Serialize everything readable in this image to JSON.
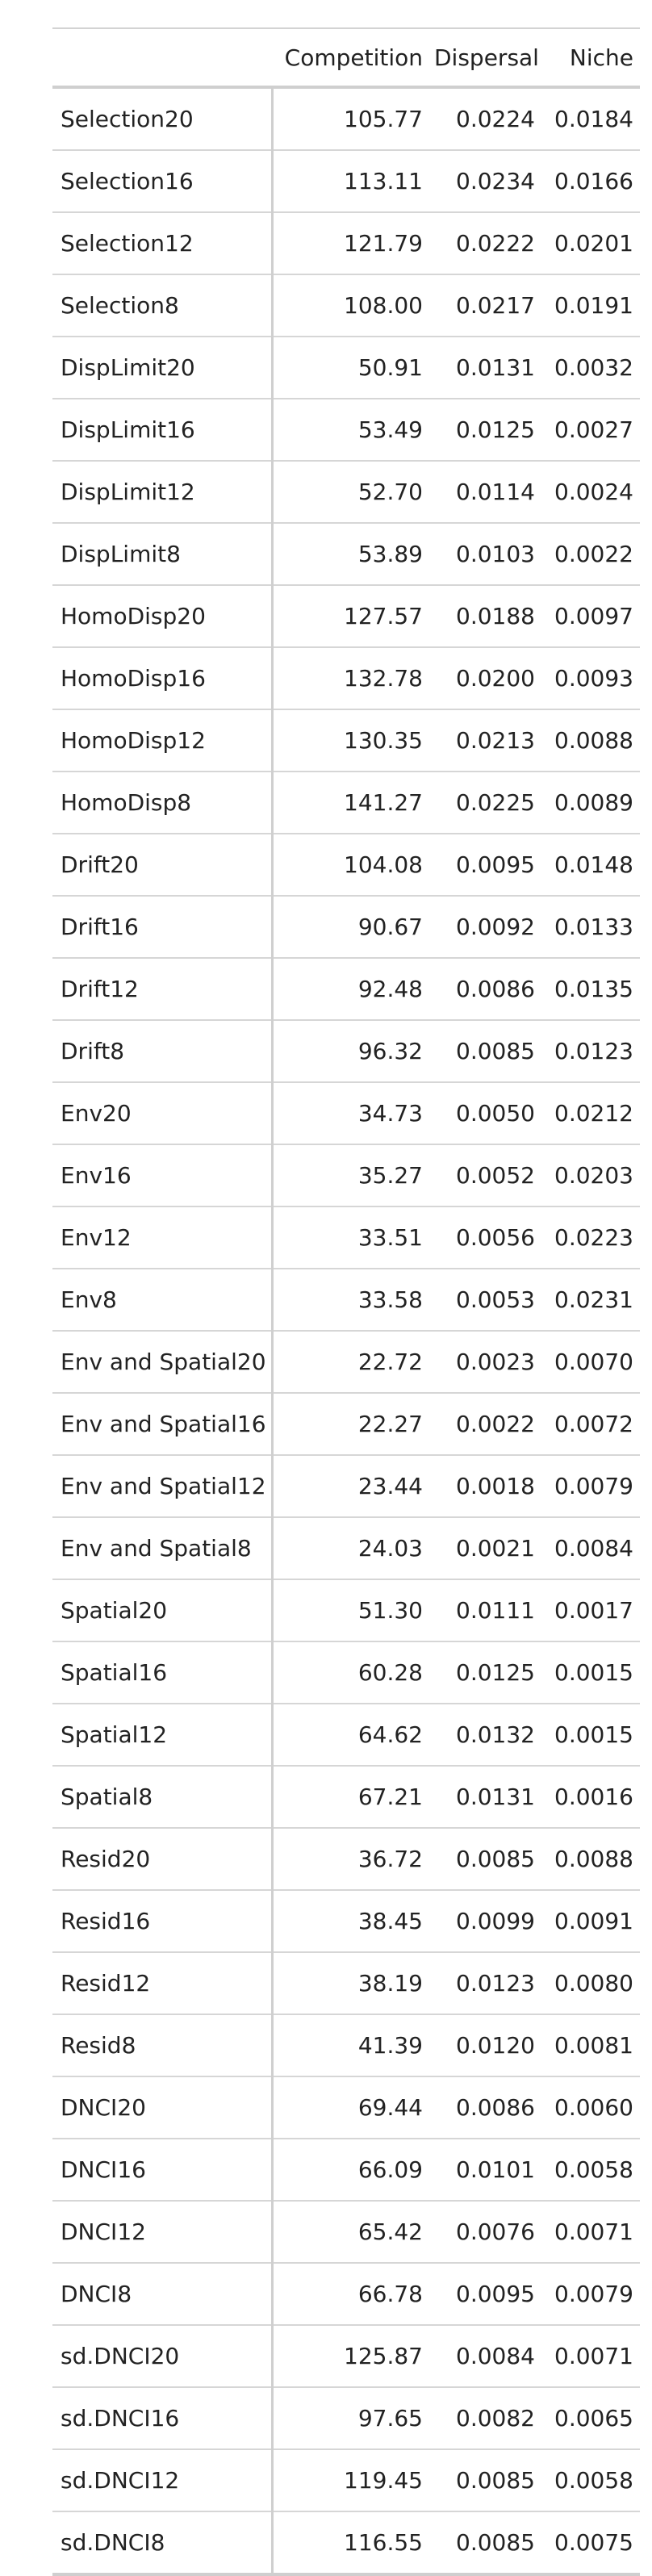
{
  "table": {
    "columns": {
      "stub": "",
      "competition": "Competition",
      "dispersal": "Dispersal",
      "niche": "Niche"
    },
    "rows": [
      {
        "name": "Selection20",
        "competition": "105.77",
        "dispersal": "0.0224",
        "niche": "0.0184"
      },
      {
        "name": "Selection16",
        "competition": "113.11",
        "dispersal": "0.0234",
        "niche": "0.0166"
      },
      {
        "name": "Selection12",
        "competition": "121.79",
        "dispersal": "0.0222",
        "niche": "0.0201"
      },
      {
        "name": "Selection8",
        "competition": "108.00",
        "dispersal": "0.0217",
        "niche": "0.0191"
      },
      {
        "name": "DispLimit20",
        "competition": "50.91",
        "dispersal": "0.0131",
        "niche": "0.0032"
      },
      {
        "name": "DispLimit16",
        "competition": "53.49",
        "dispersal": "0.0125",
        "niche": "0.0027"
      },
      {
        "name": "DispLimit12",
        "competition": "52.70",
        "dispersal": "0.0114",
        "niche": "0.0024"
      },
      {
        "name": "DispLimit8",
        "competition": "53.89",
        "dispersal": "0.0103",
        "niche": "0.0022"
      },
      {
        "name": "HomoDisp20",
        "competition": "127.57",
        "dispersal": "0.0188",
        "niche": "0.0097"
      },
      {
        "name": "HomoDisp16",
        "competition": "132.78",
        "dispersal": "0.0200",
        "niche": "0.0093"
      },
      {
        "name": "HomoDisp12",
        "competition": "130.35",
        "dispersal": "0.0213",
        "niche": "0.0088"
      },
      {
        "name": "HomoDisp8",
        "competition": "141.27",
        "dispersal": "0.0225",
        "niche": "0.0089"
      },
      {
        "name": "Drift20",
        "competition": "104.08",
        "dispersal": "0.0095",
        "niche": "0.0148"
      },
      {
        "name": "Drift16",
        "competition": "90.67",
        "dispersal": "0.0092",
        "niche": "0.0133"
      },
      {
        "name": "Drift12",
        "competition": "92.48",
        "dispersal": "0.0086",
        "niche": "0.0135"
      },
      {
        "name": "Drift8",
        "competition": "96.32",
        "dispersal": "0.0085",
        "niche": "0.0123"
      },
      {
        "name": "Env20",
        "competition": "34.73",
        "dispersal": "0.0050",
        "niche": "0.0212"
      },
      {
        "name": "Env16",
        "competition": "35.27",
        "dispersal": "0.0052",
        "niche": "0.0203"
      },
      {
        "name": "Env12",
        "competition": "33.51",
        "dispersal": "0.0056",
        "niche": "0.0223"
      },
      {
        "name": "Env8",
        "competition": "33.58",
        "dispersal": "0.0053",
        "niche": "0.0231"
      },
      {
        "name": "Env and Spatial20",
        "competition": "22.72",
        "dispersal": "0.0023",
        "niche": "0.0070"
      },
      {
        "name": "Env and Spatial16",
        "competition": "22.27",
        "dispersal": "0.0022",
        "niche": "0.0072"
      },
      {
        "name": "Env and Spatial12",
        "competition": "23.44",
        "dispersal": "0.0018",
        "niche": "0.0079"
      },
      {
        "name": "Env and Spatial8",
        "competition": "24.03",
        "dispersal": "0.0021",
        "niche": "0.0084"
      },
      {
        "name": "Spatial20",
        "competition": "51.30",
        "dispersal": "0.0111",
        "niche": "0.0017"
      },
      {
        "name": "Spatial16",
        "competition": "60.28",
        "dispersal": "0.0125",
        "niche": "0.0015"
      },
      {
        "name": "Spatial12",
        "competition": "64.62",
        "dispersal": "0.0132",
        "niche": "0.0015"
      },
      {
        "name": "Spatial8",
        "competition": "67.21",
        "dispersal": "0.0131",
        "niche": "0.0016"
      },
      {
        "name": "Resid20",
        "competition": "36.72",
        "dispersal": "0.0085",
        "niche": "0.0088"
      },
      {
        "name": "Resid16",
        "competition": "38.45",
        "dispersal": "0.0099",
        "niche": "0.0091"
      },
      {
        "name": "Resid12",
        "competition": "38.19",
        "dispersal": "0.0123",
        "niche": "0.0080"
      },
      {
        "name": "Resid8",
        "competition": "41.39",
        "dispersal": "0.0120",
        "niche": "0.0081"
      },
      {
        "name": "DNCI20",
        "competition": "69.44",
        "dispersal": "0.0086",
        "niche": "0.0060"
      },
      {
        "name": "DNCI16",
        "competition": "66.09",
        "dispersal": "0.0101",
        "niche": "0.0058"
      },
      {
        "name": "DNCI12",
        "competition": "65.42",
        "dispersal": "0.0076",
        "niche": "0.0071"
      },
      {
        "name": "DNCI8",
        "competition": "66.78",
        "dispersal": "0.0095",
        "niche": "0.0079"
      },
      {
        "name": "sd.DNCI20",
        "competition": "125.87",
        "dispersal": "0.0084",
        "niche": "0.0071"
      },
      {
        "name": "sd.DNCI16",
        "competition": "97.65",
        "dispersal": "0.0082",
        "niche": "0.0065"
      },
      {
        "name": "sd.DNCI12",
        "competition": "119.45",
        "dispersal": "0.0085",
        "niche": "0.0058"
      },
      {
        "name": "sd.DNCI8",
        "competition": "116.55",
        "dispersal": "0.0085",
        "niche": "0.0075"
      }
    ]
  }
}
